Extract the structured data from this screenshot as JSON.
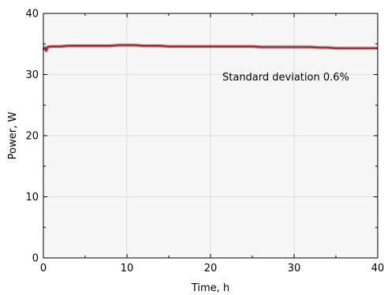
{
  "chart_data": {
    "type": "line",
    "title": "",
    "xlabel": "Time, h",
    "ylabel": "Power, W",
    "xlim": [
      0,
      40
    ],
    "ylim": [
      0,
      40
    ],
    "xticks": [
      0,
      10,
      20,
      30,
      40
    ],
    "yticks": [
      0,
      10,
      20,
      30,
      40
    ],
    "grid": true,
    "legend": "none",
    "annotation": "Standard deviation 0.6%",
    "colors": {
      "plot_background": "#f7f7f7",
      "grid": "#dcdcdc",
      "series_main": "#b01020",
      "series_band": "#6a6a6a"
    },
    "series": [
      {
        "x": [
          0,
          0.2,
          0.35,
          0.5,
          1,
          2,
          3,
          4,
          5,
          6,
          7,
          8,
          9,
          10,
          11,
          12,
          13,
          14,
          15,
          16,
          17,
          18,
          19,
          20,
          21,
          22,
          23,
          24,
          25,
          26,
          27,
          28,
          29,
          30,
          31,
          32,
          33,
          34,
          35,
          36,
          37,
          38,
          39,
          40
        ],
        "y": [
          34.0,
          34.4,
          33.9,
          34.5,
          34.6,
          34.6,
          34.7,
          34.7,
          34.7,
          34.7,
          34.7,
          34.7,
          34.8,
          34.8,
          34.8,
          34.7,
          34.7,
          34.7,
          34.6,
          34.6,
          34.6,
          34.6,
          34.6,
          34.6,
          34.6,
          34.6,
          34.6,
          34.6,
          34.6,
          34.5,
          34.5,
          34.5,
          34.5,
          34.5,
          34.5,
          34.5,
          34.4,
          34.4,
          34.3,
          34.3,
          34.3,
          34.3,
          34.3,
          34.3
        ]
      }
    ]
  }
}
